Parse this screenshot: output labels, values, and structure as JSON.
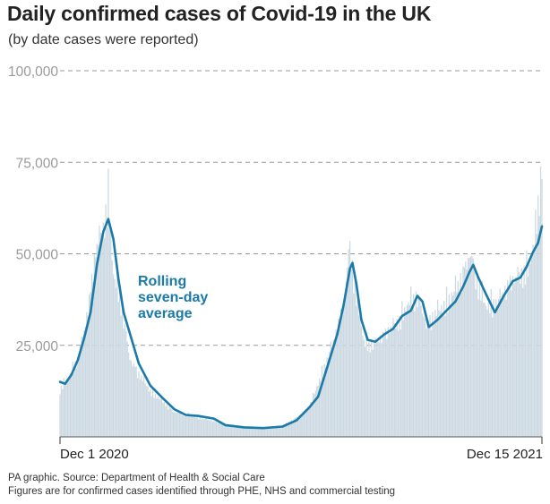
{
  "title": "Daily confirmed cases of Covid-19 in the UK",
  "subtitle": "(by date cases were reported)",
  "footer": {
    "source": "PA graphic. Source: Department of Health & Social Care",
    "note": "Figures are for confirmed cases identified through PHE, NHS and commercial testing"
  },
  "colors": {
    "bars": "#cdd9e2",
    "line": "#1a7aa8",
    "grid": "#9a9a9a",
    "axis": "#555555"
  },
  "chart_data": {
    "type": "bar",
    "title": "Daily confirmed cases of Covid-19 in the UK",
    "subtitle": "(by date cases were reported)",
    "xlabel": "",
    "ylabel": "",
    "ylim": [
      0,
      100000
    ],
    "yticks": [
      25000,
      50000,
      75000,
      100000
    ],
    "ytick_labels": [
      "25,000",
      "50,000",
      "75,000",
      "100,000"
    ],
    "xlim": [
      "2020-12-01",
      "2021-12-15"
    ],
    "xticks": [
      "2020-12-01",
      "2021-12-15"
    ],
    "xtick_labels": [
      "Dec 1 2020",
      "Dec 15 2021"
    ],
    "grid": "horizontal-dashed",
    "annotation": {
      "text": [
        "Rolling",
        "seven-day",
        "average"
      ],
      "series": "rolling-average"
    },
    "series": [
      {
        "kind": "bar",
        "label": "Daily confirmed cases",
        "points": [
          [
            "2020-12-01",
            13500
          ],
          [
            "2020-12-08",
            17000
          ],
          [
            "2020-12-15",
            22000
          ],
          [
            "2020-12-20",
            30000
          ],
          [
            "2020-12-24",
            39000
          ],
          [
            "2020-12-29",
            53000
          ],
          [
            "2021-01-04",
            59000
          ],
          [
            "2021-01-08",
            68000
          ],
          [
            "2021-01-12",
            46000
          ],
          [
            "2021-01-18",
            38000
          ],
          [
            "2021-01-25",
            22000
          ],
          [
            "2021-02-01",
            18000
          ],
          [
            "2021-02-10",
            13000
          ],
          [
            "2021-02-20",
            10000
          ],
          [
            "2021-03-01",
            7000
          ],
          [
            "2021-03-15",
            6000
          ],
          [
            "2021-04-01",
            4500
          ],
          [
            "2021-04-20",
            2800
          ],
          [
            "2021-05-10",
            2600
          ],
          [
            "2021-05-25",
            3000
          ],
          [
            "2021-06-05",
            5500
          ],
          [
            "2021-06-15",
            8500
          ],
          [
            "2021-06-25",
            18000
          ],
          [
            "2021-07-05",
            28000
          ],
          [
            "2021-07-12",
            38000
          ],
          [
            "2021-07-17",
            54000
          ],
          [
            "2021-07-22",
            40000
          ],
          [
            "2021-07-28",
            27000
          ],
          [
            "2021-08-05",
            26000
          ],
          [
            "2021-08-15",
            30000
          ],
          [
            "2021-08-25",
            33000
          ],
          [
            "2021-09-01",
            38000
          ],
          [
            "2021-09-08",
            40000
          ],
          [
            "2021-09-15",
            32000
          ],
          [
            "2021-09-22",
            35000
          ],
          [
            "2021-10-01",
            38000
          ],
          [
            "2021-10-10",
            43000
          ],
          [
            "2021-10-20",
            52000
          ],
          [
            "2021-10-25",
            44000
          ],
          [
            "2021-11-01",
            37000
          ],
          [
            "2021-11-10",
            38000
          ],
          [
            "2021-11-20",
            44000
          ],
          [
            "2021-11-28",
            46000
          ],
          [
            "2021-12-05",
            48000
          ],
          [
            "2021-12-10",
            58000
          ],
          [
            "2021-12-14",
            74000
          ],
          [
            "2021-12-15",
            78500
          ]
        ]
      },
      {
        "kind": "line",
        "label": "Rolling seven-day average",
        "points": [
          [
            "2020-12-01",
            15000
          ],
          [
            "2020-12-05",
            14500
          ],
          [
            "2020-12-10",
            17000
          ],
          [
            "2020-12-15",
            21000
          ],
          [
            "2020-12-20",
            27000
          ],
          [
            "2020-12-25",
            34000
          ],
          [
            "2020-12-30",
            47000
          ],
          [
            "2021-01-04",
            56000
          ],
          [
            "2021-01-08",
            59500
          ],
          [
            "2021-01-12",
            54000
          ],
          [
            "2021-01-16",
            43000
          ],
          [
            "2021-01-20",
            34000
          ],
          [
            "2021-01-26",
            27000
          ],
          [
            "2021-02-01",
            20000
          ],
          [
            "2021-02-10",
            14000
          ],
          [
            "2021-02-20",
            10500
          ],
          [
            "2021-03-01",
            7500
          ],
          [
            "2021-03-10",
            6000
          ],
          [
            "2021-03-20",
            5700
          ],
          [
            "2021-04-01",
            5000
          ],
          [
            "2021-04-10",
            3200
          ],
          [
            "2021-04-25",
            2600
          ],
          [
            "2021-05-10",
            2400
          ],
          [
            "2021-05-25",
            2800
          ],
          [
            "2021-06-05",
            4500
          ],
          [
            "2021-06-15",
            8000
          ],
          [
            "2021-06-22",
            11000
          ],
          [
            "2021-06-30",
            20000
          ],
          [
            "2021-07-07",
            28000
          ],
          [
            "2021-07-12",
            36000
          ],
          [
            "2021-07-17",
            46000
          ],
          [
            "2021-07-19",
            47500
          ],
          [
            "2021-07-22",
            42000
          ],
          [
            "2021-07-26",
            32000
          ],
          [
            "2021-07-31",
            26500
          ],
          [
            "2021-08-06",
            26000
          ],
          [
            "2021-08-13",
            28000
          ],
          [
            "2021-08-20",
            29500
          ],
          [
            "2021-08-27",
            33000
          ],
          [
            "2021-09-03",
            34500
          ],
          [
            "2021-09-08",
            38500
          ],
          [
            "2021-09-12",
            37000
          ],
          [
            "2021-09-17",
            30000
          ],
          [
            "2021-09-24",
            32000
          ],
          [
            "2021-10-01",
            34500
          ],
          [
            "2021-10-08",
            37000
          ],
          [
            "2021-10-14",
            41000
          ],
          [
            "2021-10-19",
            45000
          ],
          [
            "2021-10-22",
            47000
          ],
          [
            "2021-10-26",
            43500
          ],
          [
            "2021-11-01",
            39000
          ],
          [
            "2021-11-08",
            34000
          ],
          [
            "2021-11-15",
            38500
          ],
          [
            "2021-11-22",
            42500
          ],
          [
            "2021-11-28",
            43500
          ],
          [
            "2021-12-03",
            46500
          ],
          [
            "2021-12-08",
            50500
          ],
          [
            "2021-12-12",
            53000
          ],
          [
            "2021-12-15",
            57500
          ]
        ]
      }
    ]
  }
}
